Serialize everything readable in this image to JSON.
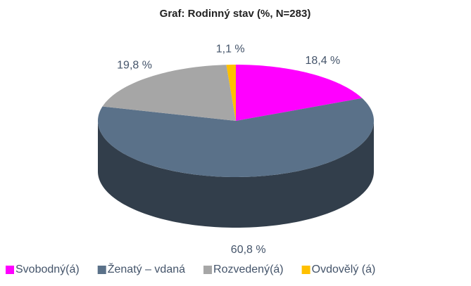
{
  "chart_data": {
    "type": "pie",
    "title": "Graf: Rodinný stav (%, N=283)",
    "categories": [
      "Svobodný(á)",
      "Ženatý – vdaná",
      "Rozvedený(á)",
      "Ovdovělý (á)"
    ],
    "values": [
      18.4,
      60.8,
      19.8,
      1.1
    ],
    "value_labels": [
      "18,4 %",
      "60,8 %",
      "19,8 %",
      "1,1 %"
    ],
    "colors": [
      "#ff00ff",
      "#5a7189",
      "#a6a6a6",
      "#ffc000"
    ],
    "legend": "bottom"
  }
}
